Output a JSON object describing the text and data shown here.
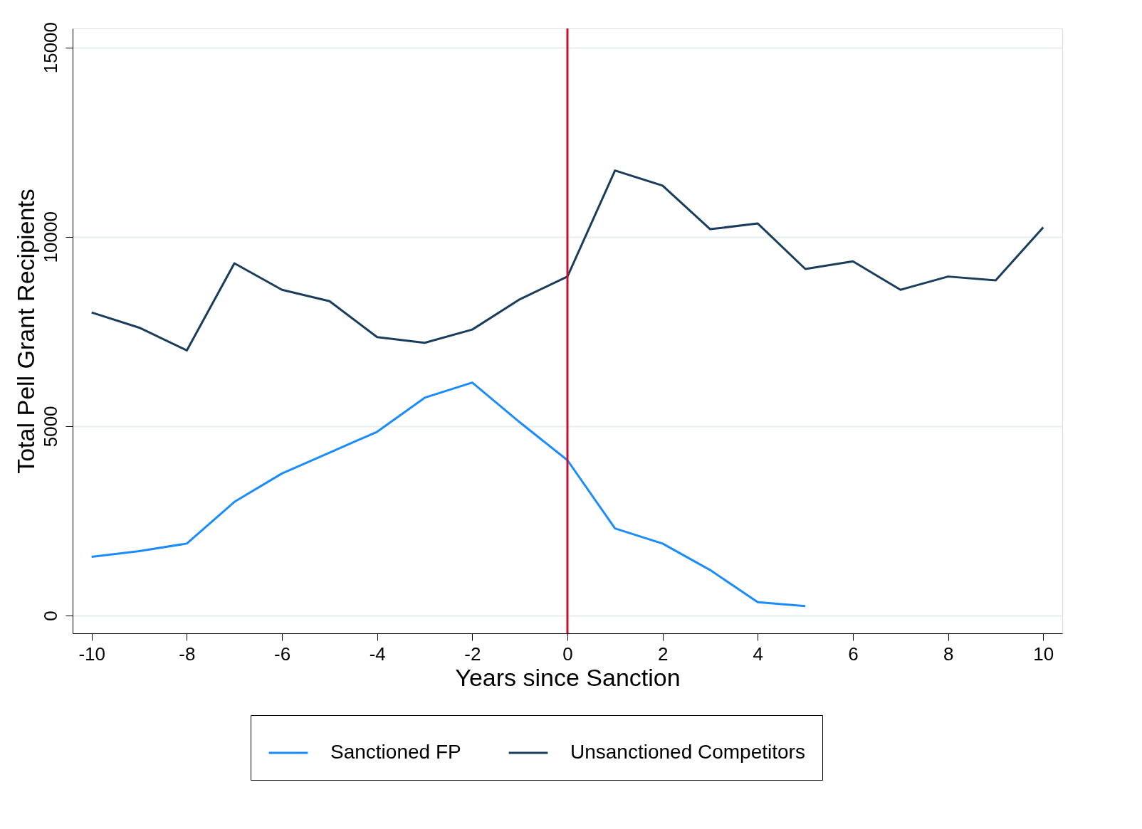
{
  "chart_data": {
    "type": "line",
    "xlabel": "Years since Sanction",
    "ylabel": "Total Pell Grant Recipients",
    "x": [
      -10,
      -9,
      -8,
      -7,
      -6,
      -5,
      -4,
      -3,
      -2,
      -1,
      0,
      1,
      2,
      3,
      4,
      5,
      6,
      7,
      8,
      9,
      10
    ],
    "series": [
      {
        "name": "Sanctioned FP",
        "color": "#1a8cff",
        "values": [
          1550,
          1700,
          1900,
          3000,
          3750,
          4300,
          4850,
          5750,
          6150,
          5100,
          4100,
          2300,
          1900,
          1200,
          350,
          250,
          null,
          null,
          null,
          null,
          null
        ]
      },
      {
        "name": "Unsanctioned Competitors",
        "color": "#1a3d5c",
        "values": [
          8000,
          7600,
          7000,
          9300,
          8600,
          8300,
          7350,
          7200,
          7550,
          8350,
          8950,
          11750,
          11350,
          10200,
          10350,
          9150,
          9350,
          8600,
          8950,
          8850,
          10250
        ]
      }
    ],
    "xlim": [
      -10.4,
      10.4
    ],
    "ylim": [
      -470,
      15500
    ],
    "xticks": [
      -10,
      -8,
      -6,
      -4,
      -2,
      0,
      2,
      4,
      6,
      8,
      10
    ],
    "yticks": [
      0,
      5000,
      10000,
      15000
    ],
    "grid": "y",
    "legend": "bottom",
    "line_style": "solid",
    "marker": "none",
    "ref_lines": [
      {
        "axis": "x",
        "value": 0,
        "color": "#c8102e"
      }
    ]
  }
}
